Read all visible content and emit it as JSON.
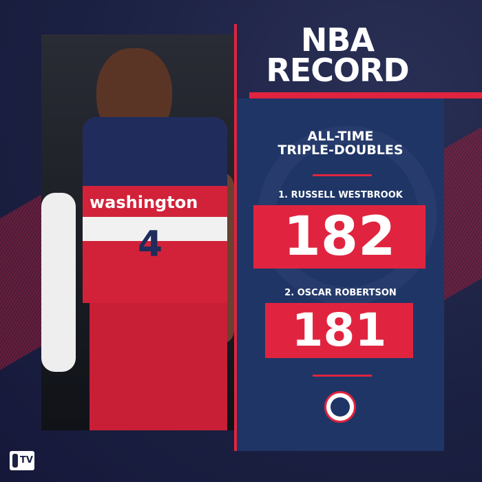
{
  "header": {
    "line1": "NBA",
    "line2": "RECORD"
  },
  "panel": {
    "subtitle_line1": "ALL-TIME",
    "subtitle_line2": "TRIPLE-DOUBLES",
    "rankings": [
      {
        "label": "1. RUSSELL WESTBROOK",
        "value": "182"
      },
      {
        "label": "2. OSCAR ROBERTSON",
        "value": "181"
      }
    ]
  },
  "photo": {
    "jersey_text": "washington",
    "jersey_number": "4"
  },
  "branding": {
    "logo": "NBA TV",
    "team_logo": "washington-wizards-logo"
  },
  "colors": {
    "background": "#1b2142",
    "accent_red": "#e0243f",
    "panel_blue": "#1f3566"
  }
}
